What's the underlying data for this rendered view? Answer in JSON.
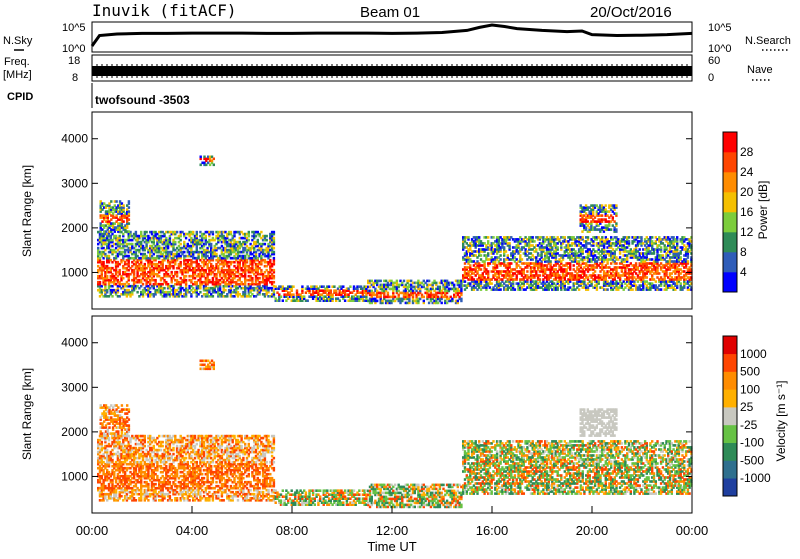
{
  "header": {
    "station": "Inuvik (fitACF)",
    "beam": "Beam 01",
    "date": "20/Oct/2016"
  },
  "left_labels": {
    "nsky": "N.Sky",
    "freq_line1": "Freq.",
    "freq_line2": "[MHz]",
    "cpid": "CPID"
  },
  "right_labels": {
    "nsearch": "N.Search",
    "nave": "Nave"
  },
  "cpid_value": "twofsound -3503",
  "chart_data": [
    {
      "type": "line",
      "panel": "noise",
      "left_ticks": [
        "10^5",
        "10^0"
      ],
      "right_ticks": [
        "10^5",
        "10^0"
      ],
      "x_hours": [
        0,
        0.3,
        1,
        2,
        3,
        4,
        5,
        6,
        7,
        8,
        9,
        10,
        11,
        12,
        13,
        14,
        15,
        15.5,
        16,
        16.5,
        17,
        18,
        19,
        19.6,
        20,
        21,
        22,
        23,
        24
      ],
      "y_fraction": [
        0.2,
        0.55,
        0.6,
        0.62,
        0.62,
        0.63,
        0.63,
        0.63,
        0.62,
        0.62,
        0.63,
        0.63,
        0.63,
        0.62,
        0.63,
        0.65,
        0.72,
        0.82,
        0.9,
        0.85,
        0.78,
        0.72,
        0.68,
        0.7,
        0.58,
        0.55,
        0.56,
        0.58,
        0.62
      ],
      "xlim": [
        0,
        24
      ]
    },
    {
      "type": "line",
      "panel": "frequency",
      "left_ticks": [
        "18",
        "8"
      ],
      "right_ticks": [
        "60",
        "0"
      ],
      "xlim": [
        0,
        24
      ],
      "level_fraction": 0.35
    },
    {
      "type": "heatmap",
      "panel": "power",
      "ylabel": "Slant Range [km]",
      "colorbar_label": "Power [dB]",
      "colorbar_ticks": [
        "28",
        "24",
        "20",
        "16",
        "12",
        "8",
        "4"
      ],
      "colors": [
        "#0000ff",
        "#2e5cb8",
        "#2e8b57",
        "#7ccd3c",
        "#f5c000",
        "#ff8c00",
        "#ff4500",
        "#ff0000"
      ],
      "y_ticks": [
        "4000",
        "3000",
        "2000",
        "1000"
      ],
      "ylim": [
        180,
        4600
      ],
      "xlim": [
        0,
        24
      ]
    },
    {
      "type": "heatmap",
      "panel": "velocity",
      "ylabel": "Slant Range [km]",
      "colorbar_label": "Velocity [m s⁻¹]",
      "colorbar_ticks": [
        "1000",
        "500",
        "100",
        "25",
        "-25",
        "-100",
        "-500",
        "-1000"
      ],
      "colors": [
        "#1f3f9f",
        "#2e6f8e",
        "#2e8b57",
        "#66c244",
        "#c8c8c0",
        "#ffb000",
        "#ff8c00",
        "#ff4500",
        "#e00000"
      ],
      "y_ticks": [
        "4000",
        "3000",
        "2000",
        "1000"
      ],
      "ylim": [
        180,
        4600
      ],
      "xlim": [
        0,
        24
      ]
    }
  ],
  "x_axis": {
    "ticks": [
      "00:00",
      "04:00",
      "08:00",
      "12:00",
      "16:00",
      "20:00",
      "00:00"
    ],
    "label": "Time UT"
  }
}
